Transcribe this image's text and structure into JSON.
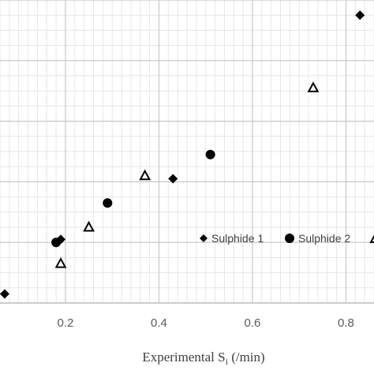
{
  "chart_data": {
    "type": "scatter",
    "title": "",
    "xlabel": "Experimental S",
    "xlabel_subscript": "i",
    "xlabel_unit": " (/min)",
    "ylabel": "",
    "xlim": [
      0.06,
      0.86
    ],
    "ylim": [
      0.0,
      1.0
    ],
    "x_ticks": [
      0.2,
      0.4,
      0.6,
      0.8
    ],
    "x_tick_labels": [
      "0.2",
      "0.4",
      "0.6",
      "0.8"
    ],
    "grid": true,
    "legend_position": "right",
    "series": [
      {
        "name": "Sulphide 1",
        "marker": "diamond",
        "x": [
          0.07,
          0.19,
          0.43,
          0.83
        ],
        "y": [
          0.03,
          0.21,
          0.41,
          0.95
        ]
      },
      {
        "name": "Sulphide 2",
        "marker": "circle",
        "x": [
          0.18,
          0.29,
          0.51
        ],
        "y": [
          0.2,
          0.33,
          0.49
        ]
      },
      {
        "name": "",
        "marker": "triangle-open",
        "x": [
          0.19,
          0.25,
          0.37,
          0.73
        ],
        "y": [
          0.13,
          0.25,
          0.42,
          0.71
        ]
      }
    ]
  }
}
